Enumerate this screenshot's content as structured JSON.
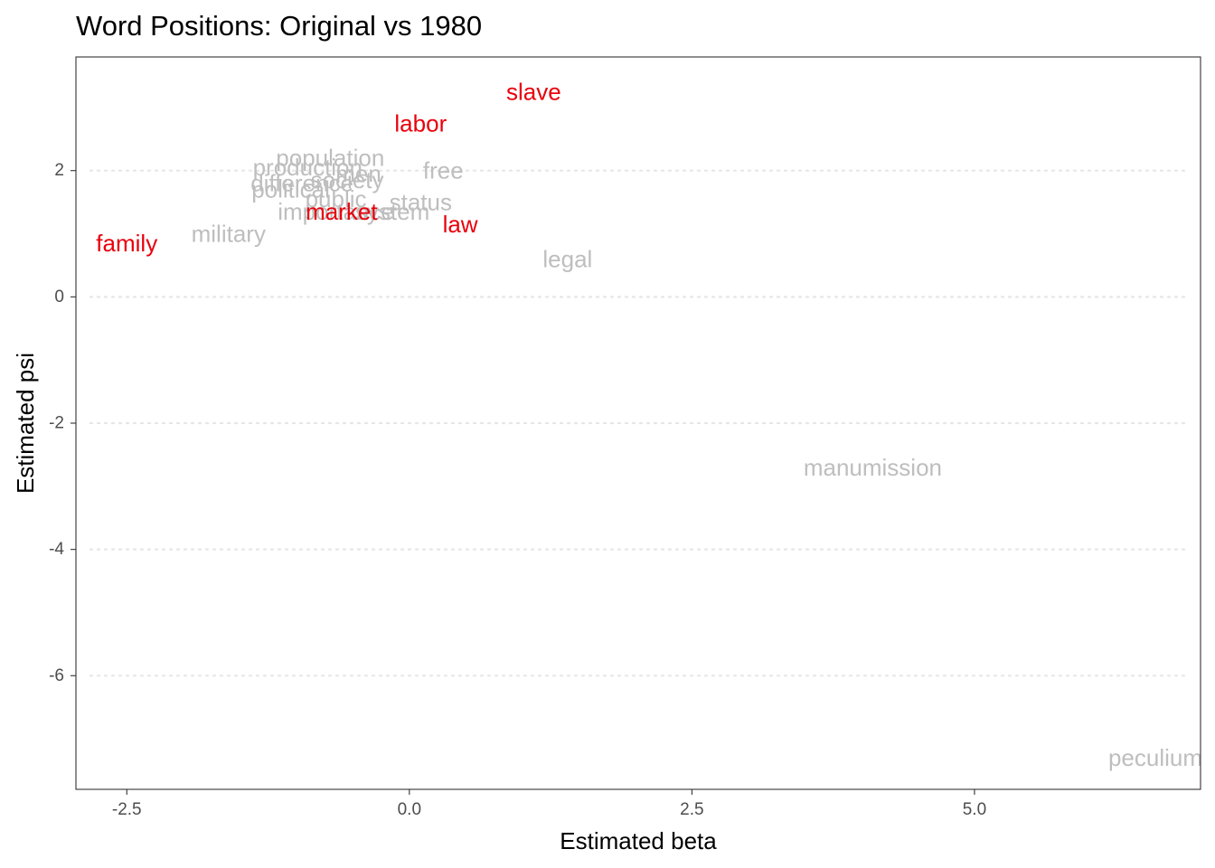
{
  "chart_data": {
    "type": "scatter",
    "title": "Word Positions: Original vs 1980",
    "xlabel": "Estimated beta",
    "ylabel": "Estimated psi",
    "xlim": [
      -2.95,
      7.0
    ],
    "ylim": [
      -7.8,
      3.8
    ],
    "x_ticks": [
      -2.5,
      0.0,
      2.5,
      5.0
    ],
    "x_tick_labels": [
      "-2.5",
      "0.0",
      "2.5",
      "5.0"
    ],
    "y_ticks": [
      2,
      0,
      -2,
      -4,
      -6
    ],
    "y_tick_labels": [
      "2",
      "0",
      "-2",
      "-4",
      "-6"
    ],
    "grid": "horizontal dotted",
    "colors": {
      "highlighted": "#e8000b",
      "other": "#bebebe",
      "grid": "#e6e6e6",
      "axis_text": "#4d4d4d"
    },
    "points": [
      {
        "word": "population",
        "x": -0.7,
        "y": 2.2,
        "highlight": false
      },
      {
        "word": "production",
        "x": -0.9,
        "y": 2.05,
        "highlight": false
      },
      {
        "word": "men",
        "x": -0.45,
        "y": 1.95,
        "highlight": false
      },
      {
        "word": "free",
        "x": 0.3,
        "y": 2.0,
        "highlight": false
      },
      {
        "word": "labor",
        "x": 0.1,
        "y": 2.75,
        "highlight": true
      },
      {
        "word": "slave",
        "x": 1.1,
        "y": 3.25,
        "highlight": true
      },
      {
        "word": "difference",
        "x": -0.95,
        "y": 1.8,
        "highlight": false
      },
      {
        "word": "society",
        "x": -0.55,
        "y": 1.85,
        "highlight": false
      },
      {
        "word": "political",
        "x": -1.05,
        "y": 1.7,
        "highlight": false
      },
      {
        "word": "public",
        "x": -0.65,
        "y": 1.55,
        "highlight": false
      },
      {
        "word": "status",
        "x": 0.1,
        "y": 1.5,
        "highlight": false
      },
      {
        "word": "importance",
        "x": -0.65,
        "y": 1.35,
        "highlight": false
      },
      {
        "word": "system",
        "x": -0.15,
        "y": 1.35,
        "highlight": false
      },
      {
        "word": "market",
        "x": -0.6,
        "y": 1.35,
        "highlight": true
      },
      {
        "word": "law",
        "x": 0.45,
        "y": 1.15,
        "highlight": true
      },
      {
        "word": "family",
        "x": -2.5,
        "y": 0.85,
        "highlight": true
      },
      {
        "word": "military",
        "x": -1.6,
        "y": 1.0,
        "highlight": false
      },
      {
        "word": "legal",
        "x": 1.4,
        "y": 0.6,
        "highlight": false
      },
      {
        "word": "manumission",
        "x": 4.1,
        "y": -2.7,
        "highlight": false
      },
      {
        "word": "peculium",
        "x": 6.6,
        "y": -7.3,
        "highlight": false
      }
    ]
  }
}
